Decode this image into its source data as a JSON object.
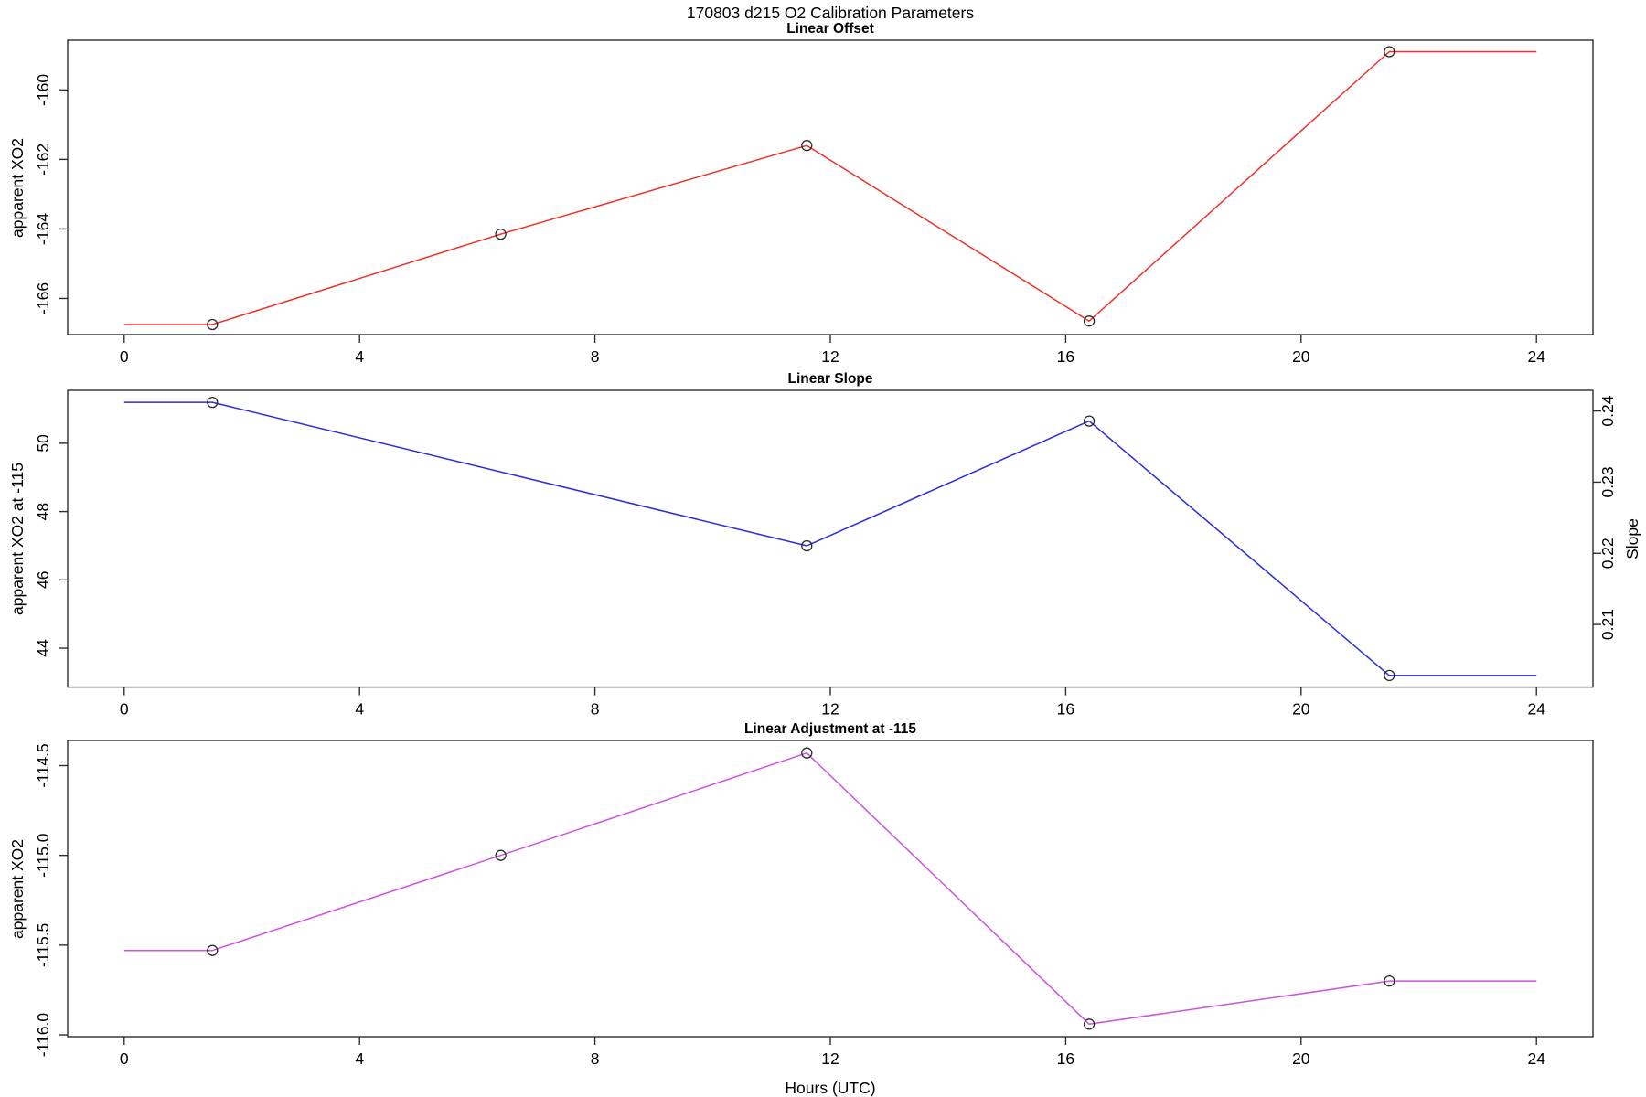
{
  "title": "170803   d215   O2 Calibration Parameters",
  "xlabel": "Hours (UTC)",
  "background": "#ffffff",
  "axis_color": "#2e2e2e",
  "marker": {
    "color": "#2b2b2b",
    "radius": 5.5
  },
  "x_ticks": [
    0,
    4,
    8,
    12,
    16,
    20,
    24
  ],
  "x_tick_labels": [
    "0",
    "4",
    "8",
    "12",
    "16",
    "20",
    "24"
  ],
  "xlim": [
    -0.96,
    24.96
  ],
  "chart_data": [
    {
      "type": "line",
      "title": "Linear Offset",
      "ylabel": "apparent XO2",
      "color": "#ee3128",
      "y_ticks": [
        -166,
        -164,
        -162,
        -160
      ],
      "y_tick_labels": [
        "-166",
        "-164",
        "-162",
        "-160"
      ],
      "ylim": [
        -167.04,
        -158.57
      ],
      "line_x": [
        0,
        1.5,
        6.4,
        11.6,
        16.4,
        21.5,
        24
      ],
      "line_y": [
        -166.75,
        -166.75,
        -164.15,
        -161.6,
        -166.65,
        -158.9,
        -158.9
      ],
      "marker_x": [
        1.5,
        6.4,
        11.6,
        16.4,
        21.5
      ],
      "marker_y": [
        -166.75,
        -164.15,
        -161.6,
        -166.65,
        -158.9
      ]
    },
    {
      "type": "line",
      "title": "Linear Slope",
      "ylabel": "apparent XO2 at -115",
      "color": "#2b2bdf",
      "y_ticks": [
        44,
        46,
        48,
        50
      ],
      "y_tick_labels": [
        "44",
        "46",
        "48",
        "50"
      ],
      "ylim": [
        42.86,
        51.55
      ],
      "right_axis": {
        "label": "Slope",
        "ticks": [
          0.21,
          0.22,
          0.23,
          0.24
        ],
        "tick_labels": [
          "0.21",
          "0.22",
          "0.23",
          "0.24"
        ],
        "ylim": [
          0.2012,
          0.2429
        ]
      },
      "line_x": [
        0,
        1.5,
        11.6,
        16.4,
        21.5,
        24
      ],
      "line_y": [
        51.2,
        51.2,
        47.0,
        50.65,
        43.2,
        43.2
      ],
      "marker_x": [
        1.5,
        11.6,
        16.4,
        21.5
      ],
      "marker_y": [
        51.2,
        47.0,
        50.65,
        43.2
      ],
      "marker_slope_values": [
        0.241,
        0.221,
        0.239,
        0.203
      ]
    },
    {
      "type": "line",
      "title": "Linear Adjustment at -115",
      "ylabel": "apparent XO2",
      "color": "#cd52de",
      "y_ticks": [
        -116.0,
        -115.5,
        -115.0,
        -114.5
      ],
      "y_tick_labels": [
        "-116.0",
        "-115.5",
        "-115.0",
        "-114.5"
      ],
      "ylim": [
        -116.01,
        -114.36
      ],
      "line_x": [
        0,
        1.5,
        6.4,
        11.6,
        16.4,
        21.5,
        24
      ],
      "line_y": [
        -115.53,
        -115.53,
        -115.0,
        -114.43,
        -115.94,
        -115.7,
        -115.7
      ],
      "marker_x": [
        1.5,
        6.4,
        11.6,
        16.4,
        21.5
      ],
      "marker_y": [
        -115.53,
        -115.0,
        -114.43,
        -115.94,
        -115.7
      ]
    }
  ]
}
